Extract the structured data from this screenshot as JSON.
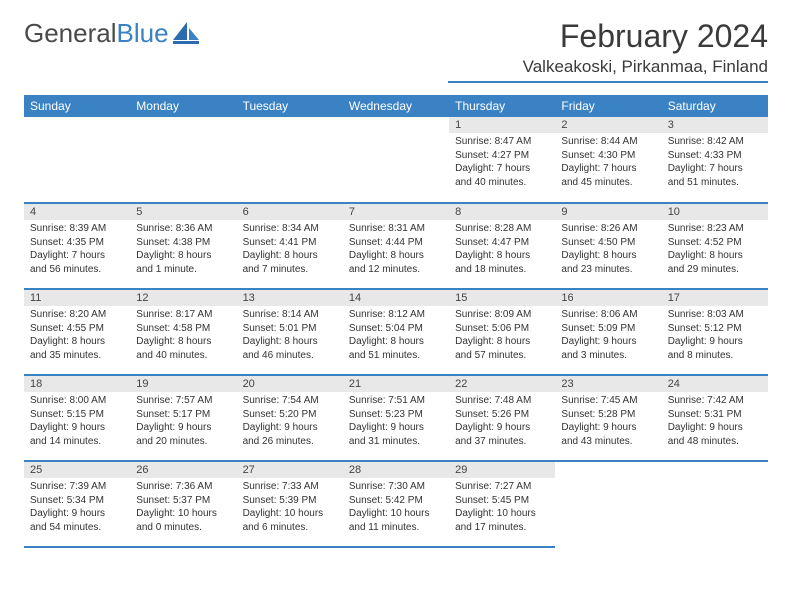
{
  "brand": {
    "part1": "General",
    "part2": "Blue"
  },
  "title": "February 2024",
  "location": "Valkeakoski, Pirkanmaa, Finland",
  "colors": {
    "accent": "#3a82c4",
    "header_bg": "#3a82c4",
    "header_text": "#ffffff",
    "daynum_bg": "#e8e8e8",
    "text": "#333333",
    "background": "#ffffff"
  },
  "weekdays": [
    "Sunday",
    "Monday",
    "Tuesday",
    "Wednesday",
    "Thursday",
    "Friday",
    "Saturday"
  ],
  "weeks": [
    [
      null,
      null,
      null,
      null,
      {
        "n": "1",
        "sr": "Sunrise: 8:47 AM",
        "ss": "Sunset: 4:27 PM",
        "dl": "Daylight: 7 hours and 40 minutes."
      },
      {
        "n": "2",
        "sr": "Sunrise: 8:44 AM",
        "ss": "Sunset: 4:30 PM",
        "dl": "Daylight: 7 hours and 45 minutes."
      },
      {
        "n": "3",
        "sr": "Sunrise: 8:42 AM",
        "ss": "Sunset: 4:33 PM",
        "dl": "Daylight: 7 hours and 51 minutes."
      }
    ],
    [
      {
        "n": "4",
        "sr": "Sunrise: 8:39 AM",
        "ss": "Sunset: 4:35 PM",
        "dl": "Daylight: 7 hours and 56 minutes."
      },
      {
        "n": "5",
        "sr": "Sunrise: 8:36 AM",
        "ss": "Sunset: 4:38 PM",
        "dl": "Daylight: 8 hours and 1 minute."
      },
      {
        "n": "6",
        "sr": "Sunrise: 8:34 AM",
        "ss": "Sunset: 4:41 PM",
        "dl": "Daylight: 8 hours and 7 minutes."
      },
      {
        "n": "7",
        "sr": "Sunrise: 8:31 AM",
        "ss": "Sunset: 4:44 PM",
        "dl": "Daylight: 8 hours and 12 minutes."
      },
      {
        "n": "8",
        "sr": "Sunrise: 8:28 AM",
        "ss": "Sunset: 4:47 PM",
        "dl": "Daylight: 8 hours and 18 minutes."
      },
      {
        "n": "9",
        "sr": "Sunrise: 8:26 AM",
        "ss": "Sunset: 4:50 PM",
        "dl": "Daylight: 8 hours and 23 minutes."
      },
      {
        "n": "10",
        "sr": "Sunrise: 8:23 AM",
        "ss": "Sunset: 4:52 PM",
        "dl": "Daylight: 8 hours and 29 minutes."
      }
    ],
    [
      {
        "n": "11",
        "sr": "Sunrise: 8:20 AM",
        "ss": "Sunset: 4:55 PM",
        "dl": "Daylight: 8 hours and 35 minutes."
      },
      {
        "n": "12",
        "sr": "Sunrise: 8:17 AM",
        "ss": "Sunset: 4:58 PM",
        "dl": "Daylight: 8 hours and 40 minutes."
      },
      {
        "n": "13",
        "sr": "Sunrise: 8:14 AM",
        "ss": "Sunset: 5:01 PM",
        "dl": "Daylight: 8 hours and 46 minutes."
      },
      {
        "n": "14",
        "sr": "Sunrise: 8:12 AM",
        "ss": "Sunset: 5:04 PM",
        "dl": "Daylight: 8 hours and 51 minutes."
      },
      {
        "n": "15",
        "sr": "Sunrise: 8:09 AM",
        "ss": "Sunset: 5:06 PM",
        "dl": "Daylight: 8 hours and 57 minutes."
      },
      {
        "n": "16",
        "sr": "Sunrise: 8:06 AM",
        "ss": "Sunset: 5:09 PM",
        "dl": "Daylight: 9 hours and 3 minutes."
      },
      {
        "n": "17",
        "sr": "Sunrise: 8:03 AM",
        "ss": "Sunset: 5:12 PM",
        "dl": "Daylight: 9 hours and 8 minutes."
      }
    ],
    [
      {
        "n": "18",
        "sr": "Sunrise: 8:00 AM",
        "ss": "Sunset: 5:15 PM",
        "dl": "Daylight: 9 hours and 14 minutes."
      },
      {
        "n": "19",
        "sr": "Sunrise: 7:57 AM",
        "ss": "Sunset: 5:17 PM",
        "dl": "Daylight: 9 hours and 20 minutes."
      },
      {
        "n": "20",
        "sr": "Sunrise: 7:54 AM",
        "ss": "Sunset: 5:20 PM",
        "dl": "Daylight: 9 hours and 26 minutes."
      },
      {
        "n": "21",
        "sr": "Sunrise: 7:51 AM",
        "ss": "Sunset: 5:23 PM",
        "dl": "Daylight: 9 hours and 31 minutes."
      },
      {
        "n": "22",
        "sr": "Sunrise: 7:48 AM",
        "ss": "Sunset: 5:26 PM",
        "dl": "Daylight: 9 hours and 37 minutes."
      },
      {
        "n": "23",
        "sr": "Sunrise: 7:45 AM",
        "ss": "Sunset: 5:28 PM",
        "dl": "Daylight: 9 hours and 43 minutes."
      },
      {
        "n": "24",
        "sr": "Sunrise: 7:42 AM",
        "ss": "Sunset: 5:31 PM",
        "dl": "Daylight: 9 hours and 48 minutes."
      }
    ],
    [
      {
        "n": "25",
        "sr": "Sunrise: 7:39 AM",
        "ss": "Sunset: 5:34 PM",
        "dl": "Daylight: 9 hours and 54 minutes."
      },
      {
        "n": "26",
        "sr": "Sunrise: 7:36 AM",
        "ss": "Sunset: 5:37 PM",
        "dl": "Daylight: 10 hours and 0 minutes."
      },
      {
        "n": "27",
        "sr": "Sunrise: 7:33 AM",
        "ss": "Sunset: 5:39 PM",
        "dl": "Daylight: 10 hours and 6 minutes."
      },
      {
        "n": "28",
        "sr": "Sunrise: 7:30 AM",
        "ss": "Sunset: 5:42 PM",
        "dl": "Daylight: 10 hours and 11 minutes."
      },
      {
        "n": "29",
        "sr": "Sunrise: 7:27 AM",
        "ss": "Sunset: 5:45 PM",
        "dl": "Daylight: 10 hours and 17 minutes."
      },
      null,
      null
    ]
  ]
}
